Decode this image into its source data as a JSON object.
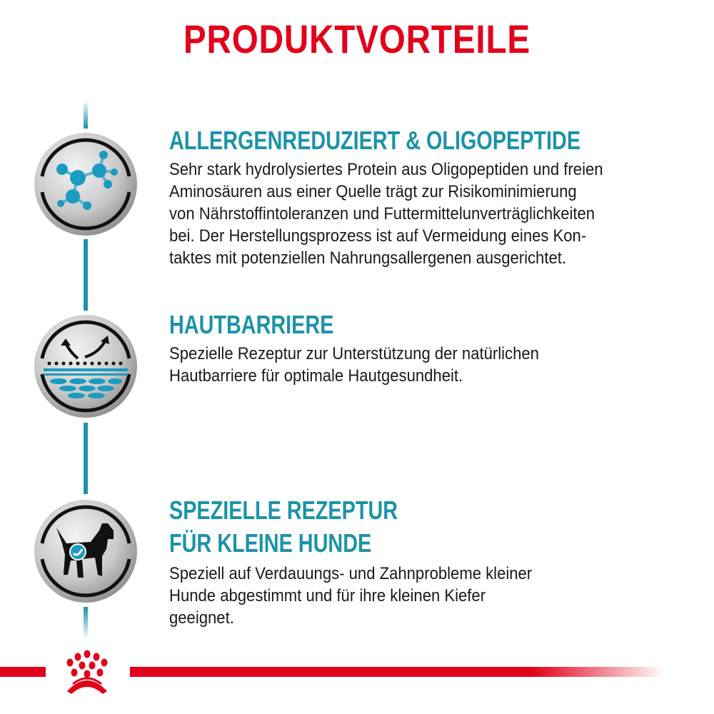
{
  "title": "PRODUKTVORTEILE",
  "colors": {
    "accent": "#1b93aa",
    "brand_red": "#e2001a",
    "text": "#1a1a1a"
  },
  "features": [
    {
      "icon": "molecule-icon",
      "heading": [
        "ALLERGENREDUZIERT & OLIGOPEPTIDE"
      ],
      "body": [
        "Sehr stark hydrolysiertes Protein aus Oligopeptiden und freien",
        "Aminosäuren aus einer Quelle trägt zur Risikominimierung",
        "von Nährstoffintoleranzen und Futtermittelunverträglichkeiten",
        "bei. Der Herstellungsprozess ist auf Vermeidung eines Kon-",
        "taktes mit potenziellen Nahrungsallergenen ausgerichtet."
      ]
    },
    {
      "icon": "skin-barrier-icon",
      "heading": [
        "HAUTBARRIERE"
      ],
      "body": [
        "Spezielle Rezeptur zur Unterstützung der natürlichen",
        "Hautbarriere für optimale Hautgesundheit."
      ]
    },
    {
      "icon": "small-dog-icon",
      "heading": [
        "SPEZIELLE REZEPTUR",
        "FÜR KLEINE HUNDE"
      ],
      "body": [
        "Speziell auf Verdauungs- und Zahnprobleme kleiner",
        "Hunde abgestimmt und für ihre kleinen Kiefer",
        "geeignet."
      ]
    }
  ],
  "logo": "royal-canin-crown-logo"
}
